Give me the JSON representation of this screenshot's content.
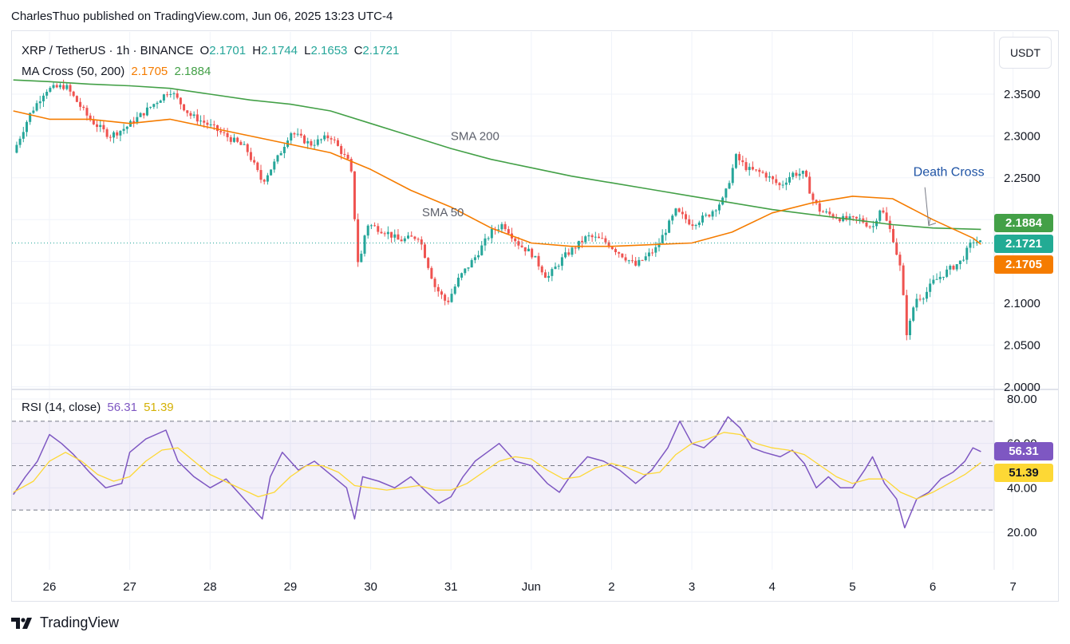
{
  "caption": "CharlesThuo published on TradingView.com, Jun 06, 2025 13:23 UTC-4",
  "brand": "TradingView",
  "unit_button": "USDT",
  "legend": {
    "symbol": "XRP / TetherUS · 1h · BINANCE",
    "o_label": "O",
    "o_value": "2.1701",
    "h_label": "H",
    "h_value": "2.1744",
    "l_label": "L",
    "l_value": "2.1653",
    "c_label": "C",
    "c_value": "2.1721",
    "ma_label": "MA Cross (50, 200)",
    "ma50_value": "2.1705",
    "ma200_value": "2.1884",
    "rsi_label": "RSI (14, close)",
    "rsi_value": "56.31",
    "rsi_ma_value": "51.39"
  },
  "badges": {
    "ma200": "2.1884",
    "close": "2.1721",
    "ma50": "2.1705",
    "rsi": "56.31",
    "rsi_ma": "51.39"
  },
  "colors": {
    "up": "#26a69a",
    "down": "#ef5350",
    "ma50": "#f57c00",
    "ma200": "#43a047",
    "rsi": "#7e57c2",
    "rsi_ma": "#fdd835",
    "close_badge": "#22ab94",
    "annotation": "#1e53a5"
  },
  "chart_data": {
    "type": "candlestick",
    "title": "XRP / TetherUS · 1h · BINANCE",
    "price_axis": {
      "ticks": [
        "2.3500",
        "2.3000",
        "2.2500",
        "2.1000",
        "2.0500",
        "2.0000"
      ],
      "range": [
        1.995,
        2.385
      ]
    },
    "rsi_axis": {
      "ticks": [
        "80.00",
        "60.00",
        "40.00",
        "20.00"
      ],
      "bands": [
        30,
        70
      ],
      "range": [
        10,
        83
      ]
    },
    "x_ticks": [
      "26",
      "27",
      "28",
      "29",
      "30",
      "31",
      "Jun",
      "2",
      "3",
      "4",
      "5",
      "6",
      "7"
    ],
    "day_range": [
      25.55,
      32.5
    ],
    "price_path": [
      [
        25.55,
        2.28
      ],
      [
        25.75,
        2.325
      ],
      [
        25.95,
        2.355
      ],
      [
        26.2,
        2.36
      ],
      [
        26.5,
        2.32
      ],
      [
        26.75,
        2.3
      ],
      [
        26.95,
        2.31
      ],
      [
        27.2,
        2.33
      ],
      [
        27.5,
        2.355
      ],
      [
        27.75,
        2.325
      ],
      [
        27.95,
        2.315
      ],
      [
        28.2,
        2.3
      ],
      [
        28.45,
        2.285
      ],
      [
        28.65,
        2.245
      ],
      [
        28.85,
        2.275
      ],
      [
        29.0,
        2.305
      ],
      [
        29.25,
        2.29
      ],
      [
        29.5,
        2.3
      ],
      [
        29.75,
        2.265
      ],
      [
        29.85,
        2.14
      ],
      [
        29.95,
        2.195
      ],
      [
        30.2,
        2.185
      ],
      [
        30.35,
        2.175
      ],
      [
        30.6,
        2.18
      ],
      [
        30.8,
        2.12
      ],
      [
        30.95,
        2.1
      ],
      [
        31.1,
        2.13
      ],
      [
        31.3,
        2.155
      ],
      [
        31.5,
        2.185
      ],
      [
        31.65,
        2.195
      ],
      [
        31.85,
        2.17
      ],
      [
        32.0,
        2.16
      ],
      [
        32.2,
        2.13
      ],
      [
        32.4,
        2.155
      ],
      [
        32.7,
        2.18
      ],
      [
        32.9,
        2.175
      ],
      [
        33.1,
        2.16
      ],
      [
        33.3,
        2.145
      ],
      [
        33.55,
        2.165
      ],
      [
        33.8,
        2.21
      ],
      [
        34.0,
        2.195
      ],
      [
        34.2,
        2.205
      ],
      [
        34.4,
        2.225
      ],
      [
        34.55,
        2.275
      ],
      [
        34.7,
        2.26
      ],
      [
        34.9,
        2.255
      ],
      [
        35.1,
        2.24
      ],
      [
        35.25,
        2.255
      ],
      [
        35.4,
        2.255
      ],
      [
        35.5,
        2.225
      ],
      [
        35.6,
        2.21
      ],
      [
        35.75,
        2.205
      ],
      [
        35.9,
        2.2
      ],
      [
        36.1,
        2.2
      ],
      [
        36.25,
        2.19
      ],
      [
        36.35,
        2.215
      ],
      [
        36.5,
        2.18
      ],
      [
        36.6,
        2.14
      ],
      [
        36.68,
        2.06
      ],
      [
        36.78,
        2.105
      ],
      [
        36.9,
        2.11
      ],
      [
        37.0,
        2.125
      ],
      [
        37.2,
        2.14
      ],
      [
        37.35,
        2.15
      ],
      [
        37.5,
        2.175
      ],
      [
        37.6,
        2.1721
      ]
    ],
    "series": [
      {
        "name": "SMA 50",
        "points": [
          [
            25.55,
            2.33
          ],
          [
            26.0,
            2.32
          ],
          [
            26.5,
            2.32
          ],
          [
            27.0,
            2.315
          ],
          [
            27.5,
            2.32
          ],
          [
            28.0,
            2.31
          ],
          [
            28.5,
            2.3
          ],
          [
            29.0,
            2.29
          ],
          [
            29.5,
            2.28
          ],
          [
            30.0,
            2.26
          ],
          [
            30.5,
            2.235
          ],
          [
            31.0,
            2.215
          ],
          [
            31.5,
            2.19
          ],
          [
            32.0,
            2.172
          ],
          [
            32.5,
            2.168
          ],
          [
            33.0,
            2.168
          ],
          [
            33.5,
            2.17
          ],
          [
            34.0,
            2.172
          ],
          [
            34.5,
            2.185
          ],
          [
            35.0,
            2.208
          ],
          [
            35.5,
            2.22
          ],
          [
            36.0,
            2.228
          ],
          [
            36.5,
            2.225
          ],
          [
            37.0,
            2.2
          ],
          [
            37.5,
            2.178
          ],
          [
            37.6,
            2.1705
          ]
        ]
      },
      {
        "name": "SMA 200",
        "points": [
          [
            25.55,
            2.367
          ],
          [
            26.0,
            2.365
          ],
          [
            26.5,
            2.362
          ],
          [
            27.0,
            2.36
          ],
          [
            27.5,
            2.357
          ],
          [
            28.0,
            2.35
          ],
          [
            28.5,
            2.343
          ],
          [
            29.0,
            2.338
          ],
          [
            29.5,
            2.33
          ],
          [
            30.0,
            2.315
          ],
          [
            30.5,
            2.3
          ],
          [
            31.0,
            2.285
          ],
          [
            31.5,
            2.272
          ],
          [
            32.0,
            2.262
          ],
          [
            32.5,
            2.252
          ],
          [
            33.0,
            2.244
          ],
          [
            33.5,
            2.236
          ],
          [
            34.0,
            2.228
          ],
          [
            34.5,
            2.22
          ],
          [
            35.0,
            2.212
          ],
          [
            35.5,
            2.206
          ],
          [
            36.0,
            2.2
          ],
          [
            36.5,
            2.194
          ],
          [
            37.0,
            2.19
          ],
          [
            37.6,
            2.1884
          ]
        ]
      },
      {
        "name": "RSI",
        "points": [
          [
            25.55,
            37
          ],
          [
            25.7,
            45
          ],
          [
            25.85,
            52
          ],
          [
            26.0,
            64
          ],
          [
            26.15,
            60
          ],
          [
            26.3,
            55
          ],
          [
            26.5,
            47
          ],
          [
            26.7,
            40
          ],
          [
            26.9,
            42
          ],
          [
            27.0,
            56
          ],
          [
            27.2,
            62
          ],
          [
            27.45,
            66
          ],
          [
            27.6,
            52
          ],
          [
            27.8,
            45
          ],
          [
            28.0,
            40
          ],
          [
            28.2,
            44
          ],
          [
            28.4,
            36
          ],
          [
            28.55,
            30
          ],
          [
            28.65,
            26
          ],
          [
            28.75,
            45
          ],
          [
            28.9,
            56
          ],
          [
            29.1,
            48
          ],
          [
            29.3,
            52
          ],
          [
            29.5,
            46
          ],
          [
            29.7,
            40
          ],
          [
            29.8,
            26
          ],
          [
            29.9,
            45
          ],
          [
            30.1,
            43
          ],
          [
            30.3,
            40
          ],
          [
            30.5,
            45
          ],
          [
            30.7,
            38
          ],
          [
            30.85,
            33
          ],
          [
            31.0,
            36
          ],
          [
            31.15,
            45
          ],
          [
            31.3,
            52
          ],
          [
            31.45,
            56
          ],
          [
            31.6,
            60
          ],
          [
            31.8,
            52
          ],
          [
            32.0,
            50
          ],
          [
            32.2,
            42
          ],
          [
            32.35,
            38
          ],
          [
            32.5,
            46
          ],
          [
            32.7,
            54
          ],
          [
            32.9,
            52
          ],
          [
            33.1,
            48
          ],
          [
            33.3,
            42
          ],
          [
            33.5,
            48
          ],
          [
            33.7,
            58
          ],
          [
            33.85,
            70
          ],
          [
            34.0,
            60
          ],
          [
            34.15,
            58
          ],
          [
            34.3,
            63
          ],
          [
            34.45,
            72
          ],
          [
            34.6,
            67
          ],
          [
            34.75,
            58
          ],
          [
            34.9,
            56
          ],
          [
            35.1,
            54
          ],
          [
            35.25,
            57
          ],
          [
            35.4,
            51
          ],
          [
            35.55,
            40
          ],
          [
            35.7,
            45
          ],
          [
            35.85,
            40
          ],
          [
            36.0,
            40
          ],
          [
            36.15,
            48
          ],
          [
            36.25,
            54
          ],
          [
            36.4,
            42
          ],
          [
            36.55,
            35
          ],
          [
            36.65,
            22
          ],
          [
            36.8,
            35
          ],
          [
            36.95,
            38
          ],
          [
            37.1,
            44
          ],
          [
            37.25,
            47
          ],
          [
            37.4,
            52
          ],
          [
            37.5,
            58
          ],
          [
            37.6,
            56.31
          ]
        ]
      },
      {
        "name": "RSI MA",
        "points": [
          [
            25.55,
            38
          ],
          [
            25.8,
            43
          ],
          [
            26.0,
            52
          ],
          [
            26.2,
            56
          ],
          [
            26.4,
            52
          ],
          [
            26.6,
            46
          ],
          [
            26.8,
            43
          ],
          [
            27.0,
            45
          ],
          [
            27.2,
            52
          ],
          [
            27.4,
            57
          ],
          [
            27.6,
            58
          ],
          [
            27.8,
            52
          ],
          [
            28.0,
            46
          ],
          [
            28.3,
            41
          ],
          [
            28.6,
            36
          ],
          [
            28.8,
            38
          ],
          [
            29.0,
            45
          ],
          [
            29.2,
            50
          ],
          [
            29.4,
            50
          ],
          [
            29.6,
            47
          ],
          [
            29.8,
            41
          ],
          [
            30.0,
            40
          ],
          [
            30.2,
            39
          ],
          [
            30.4,
            40
          ],
          [
            30.6,
            41
          ],
          [
            30.8,
            39
          ],
          [
            31.0,
            39
          ],
          [
            31.2,
            42
          ],
          [
            31.4,
            47
          ],
          [
            31.6,
            52
          ],
          [
            31.8,
            54
          ],
          [
            32.0,
            53
          ],
          [
            32.2,
            48
          ],
          [
            32.4,
            44
          ],
          [
            32.6,
            45
          ],
          [
            32.8,
            49
          ],
          [
            33.0,
            51
          ],
          [
            33.2,
            49
          ],
          [
            33.4,
            46
          ],
          [
            33.6,
            47
          ],
          [
            33.8,
            55
          ],
          [
            34.0,
            60
          ],
          [
            34.2,
            62
          ],
          [
            34.4,
            65
          ],
          [
            34.6,
            64
          ],
          [
            34.8,
            60
          ],
          [
            35.0,
            58
          ],
          [
            35.2,
            57
          ],
          [
            35.4,
            55
          ],
          [
            35.6,
            50
          ],
          [
            35.8,
            45
          ],
          [
            36.0,
            42
          ],
          [
            36.2,
            44
          ],
          [
            36.4,
            44
          ],
          [
            36.6,
            38
          ],
          [
            36.8,
            35
          ],
          [
            37.0,
            38
          ],
          [
            37.2,
            42
          ],
          [
            37.4,
            46
          ],
          [
            37.6,
            51.39
          ]
        ]
      }
    ],
    "annotations": [
      {
        "text": "SMA 200",
        "x": 31.3,
        "y": 2.295
      },
      {
        "text": "SMA 50",
        "x": 30.9,
        "y": 2.204
      },
      {
        "text": "Death Cross",
        "x": 37.2,
        "y": 2.252,
        "arrow_to": [
          36.95,
          2.193
        ]
      }
    ],
    "grid": true,
    "legend_position": "top-left"
  }
}
